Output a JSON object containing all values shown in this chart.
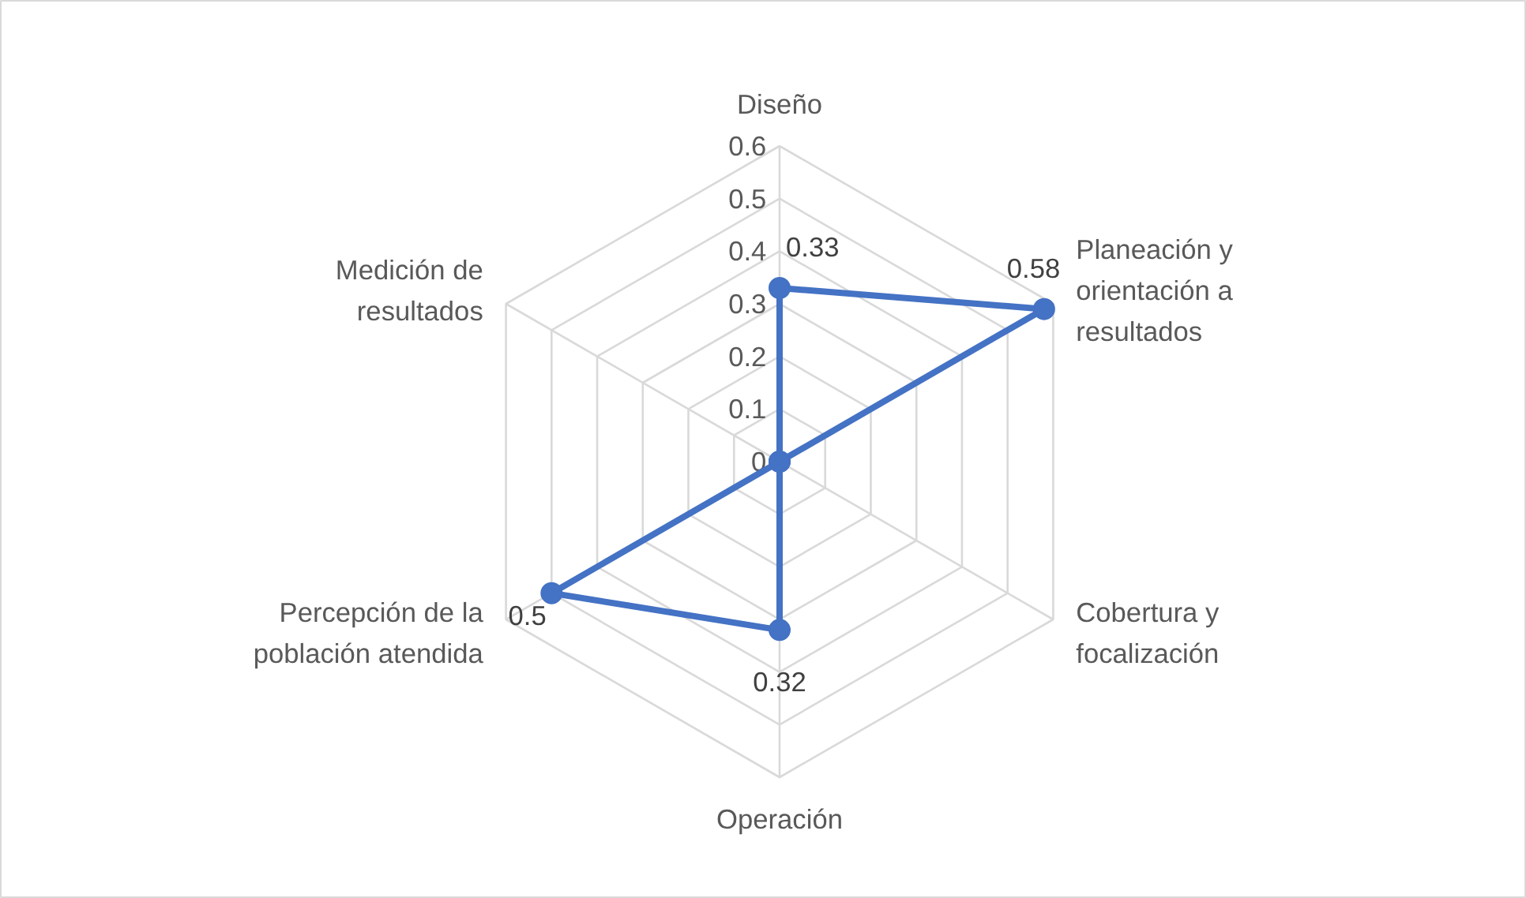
{
  "chart_data": {
    "type": "radar",
    "categories": [
      "Diseño",
      "Planeación y orientación a resultados",
      "Cobertura y focalización",
      "Operación",
      "Percepción de la población atendida",
      "Medición de resultados"
    ],
    "series": [
      {
        "color": "#4472c4",
        "values": [
          0.33,
          0.58,
          0,
          0.32,
          0.5,
          0
        ],
        "value_labels": [
          "0.33",
          "0.58",
          null,
          "0.32",
          "0.5",
          null
        ]
      }
    ],
    "ylim": [
      0,
      0.6
    ],
    "yticks": [
      0,
      0.1,
      0.2,
      0.3,
      0.4,
      0.5,
      0.6
    ],
    "grid": true,
    "marker": "circle",
    "line_style": "solid"
  }
}
